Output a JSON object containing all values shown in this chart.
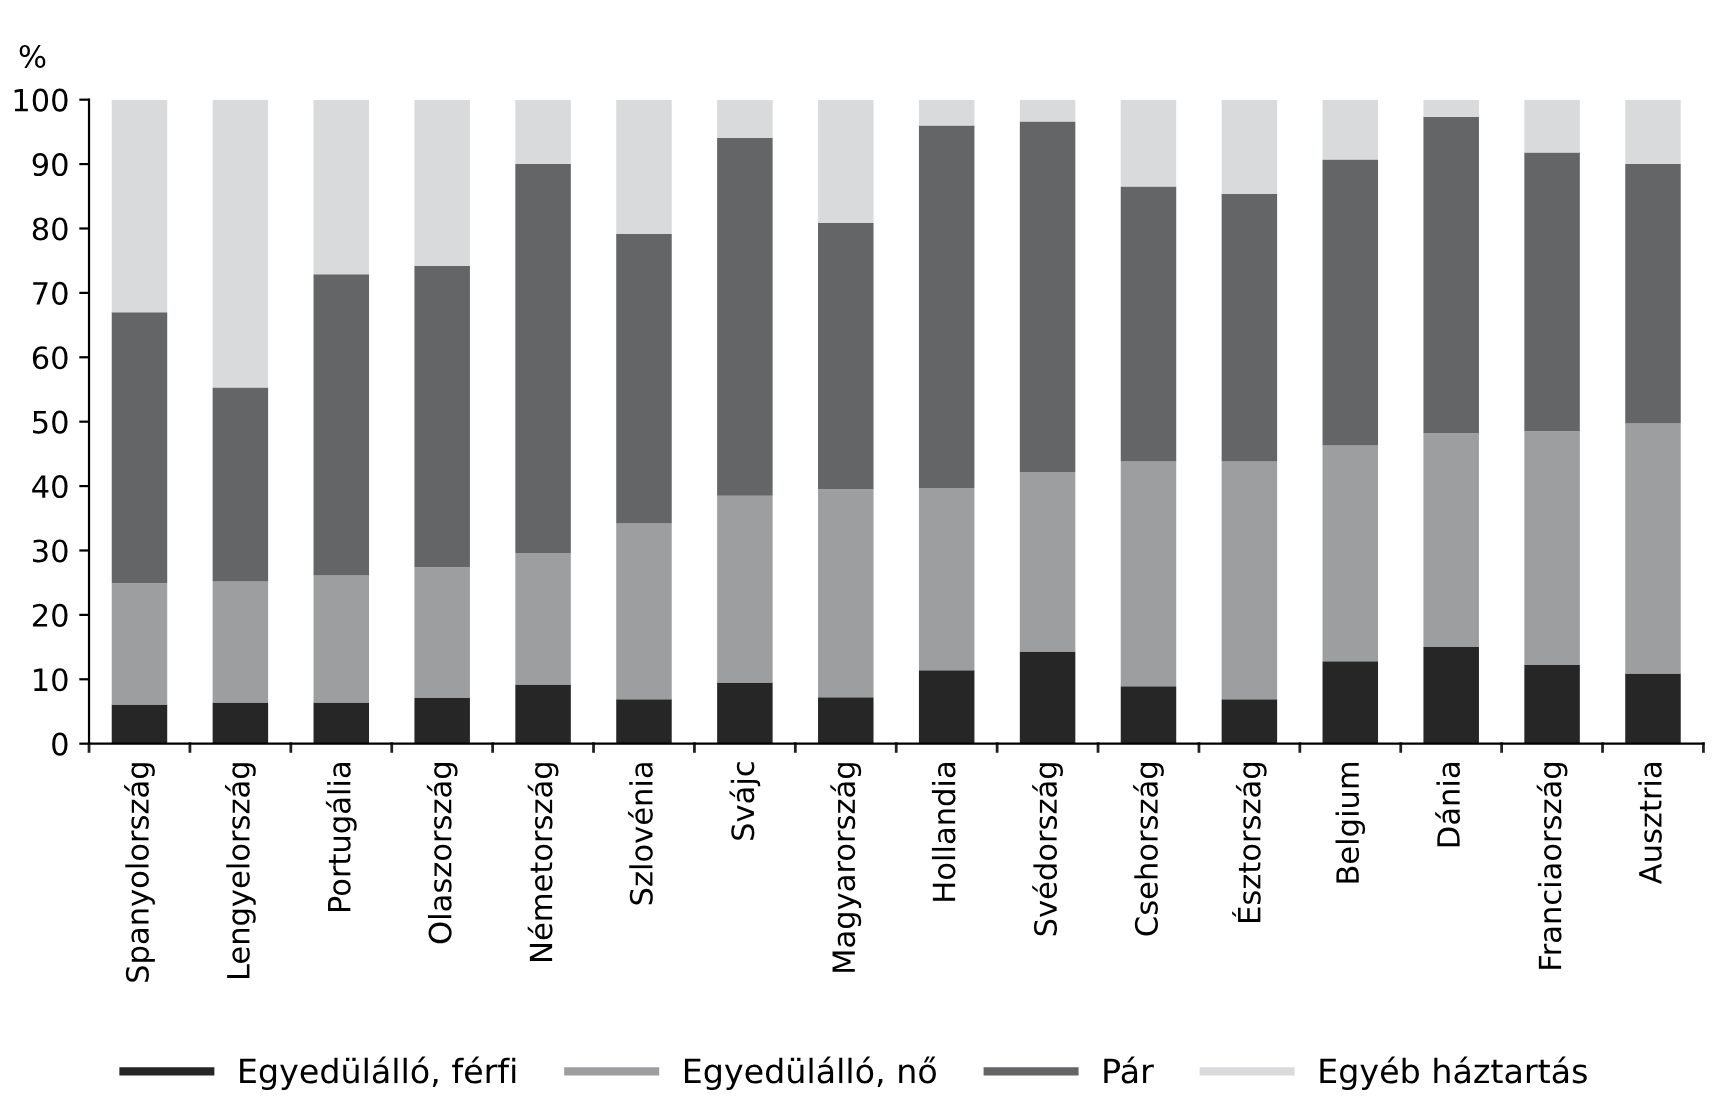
{
  "chart_data": {
    "type": "bar",
    "stacked": true,
    "ylabel": "%",
    "categories": [
      "Spanyolország",
      "Lengyelország",
      "Portugália",
      "Olaszország",
      "Németország",
      "Szlovénia",
      "Svájc",
      "Magyarország",
      "Hollandia",
      "Svédország",
      "Csehország",
      "Észtország",
      "Belgium",
      "Dánia",
      "Franciaország",
      "Ausztria"
    ],
    "series": [
      {
        "name": "Egyedülálló, férfi",
        "color": "#262626",
        "values": [
          6.1,
          6.4,
          6.4,
          7.1,
          9.2,
          6.9,
          9.5,
          7.2,
          11.4,
          14.3,
          8.9,
          6.9,
          12.8,
          15.0,
          12.2,
          10.9
        ]
      },
      {
        "name": "Egyedülálló, nő",
        "color": "#9d9ea0",
        "values": [
          18.8,
          18.8,
          19.7,
          20.3,
          20.4,
          27.3,
          29.0,
          32.3,
          28.3,
          27.9,
          34.9,
          36.9,
          33.5,
          33.2,
          36.3,
          38.8
        ]
      },
      {
        "name": "Pár",
        "color": "#646567",
        "values": [
          42.1,
          30.1,
          46.8,
          46.8,
          60.4,
          45.0,
          55.6,
          41.4,
          56.3,
          54.4,
          42.7,
          41.6,
          44.4,
          49.1,
          43.3,
          40.3
        ]
      },
      {
        "name": "Egyéb háztartás",
        "color": "#d9dadb",
        "values": [
          33.0,
          44.7,
          27.1,
          25.8,
          10.0,
          20.8,
          5.9,
          19.1,
          4.0,
          3.4,
          13.5,
          14.6,
          9.3,
          2.7,
          8.2,
          10.0
        ]
      }
    ],
    "ylim": [
      0,
      100
    ],
    "yticks": [
      0,
      10,
      20,
      30,
      40,
      50,
      60,
      70,
      80,
      90,
      100
    ],
    "grid": false,
    "legend": "bottom"
  }
}
